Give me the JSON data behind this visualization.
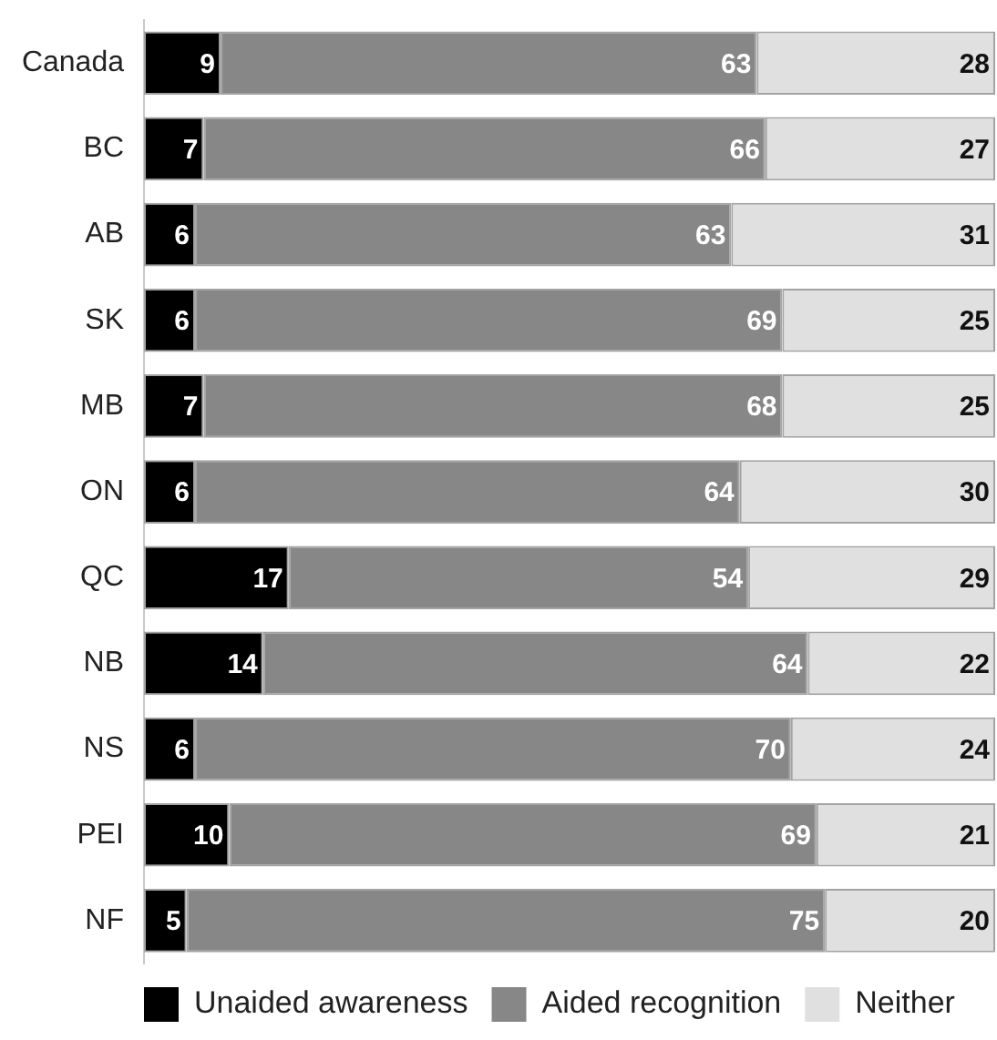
{
  "chart_data": {
    "type": "bar",
    "orientation": "horizontal",
    "stacked": true,
    "categories": [
      "Canada",
      "BC",
      "AB",
      "SK",
      "MB",
      "ON",
      "QC",
      "NB",
      "NS",
      "PEI",
      "NF"
    ],
    "series": [
      {
        "name": "Unaided awareness",
        "color": "#000000",
        "values": [
          9,
          7,
          6,
          6,
          7,
          6,
          17,
          14,
          6,
          10,
          5
        ]
      },
      {
        "name": "Aided recognition",
        "color": "#878787",
        "values": [
          63,
          66,
          63,
          69,
          68,
          64,
          54,
          64,
          70,
          69,
          75
        ]
      },
      {
        "name": "Neither",
        "color": "#e0e0e0",
        "values": [
          28,
          27,
          31,
          25,
          25,
          30,
          29,
          22,
          24,
          21,
          20
        ]
      }
    ],
    "xlim": [
      0,
      100
    ],
    "data_labels": true,
    "legend": "bottom",
    "tick_labels": "y",
    "grid": false
  }
}
